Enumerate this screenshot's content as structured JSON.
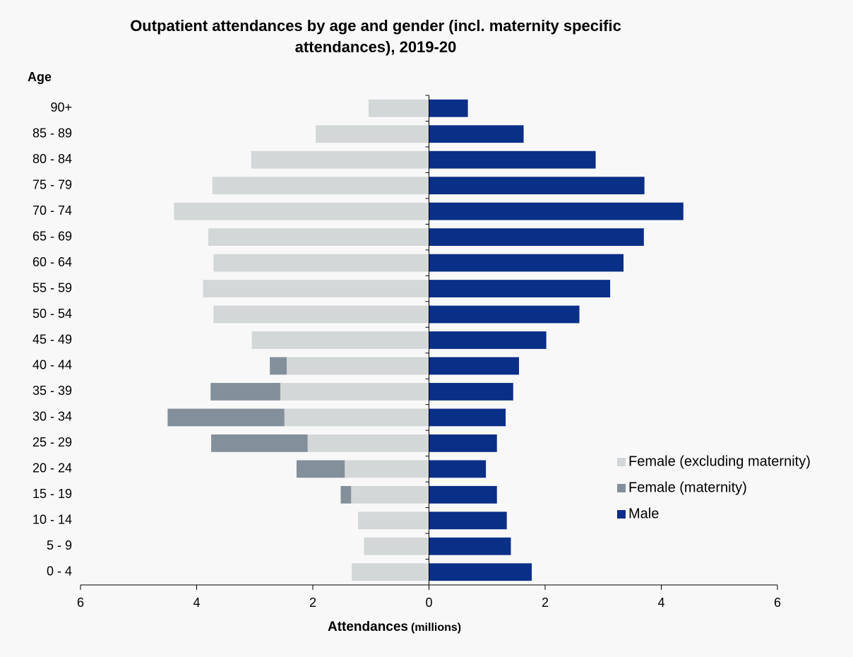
{
  "chart_data": {
    "type": "pyramid",
    "title": "Outpatient attendances by age and gender (incl. maternity specific",
    "title_line2": "attendances), 2019-20",
    "y_label": "Age",
    "x_label": "Attendances",
    "x_label_unit": "(millions)",
    "categories": [
      "90+",
      "85 - 89",
      "80 - 84",
      "75 - 79",
      "70 - 74",
      "65 - 69",
      "60 - 64",
      "55 - 59",
      "50 - 54",
      "45 - 49",
      "40 - 44",
      "35 - 39",
      "30 - 34",
      "25 - 29",
      "20 - 24",
      "15 - 19",
      "10 - 14",
      "5 - 9",
      "0 - 4"
    ],
    "series": [
      {
        "name": "Female (excluding maternity)",
        "color": "#d3d7d8",
        "values": [
          -1.04,
          -1.95,
          -3.06,
          -3.73,
          -4.39,
          -3.8,
          -3.71,
          -3.89,
          -3.71,
          -3.05,
          -2.45,
          -2.56,
          -2.49,
          -2.09,
          -1.45,
          -1.34,
          -1.22,
          -1.12,
          -1.33
        ]
      },
      {
        "name": "Female (maternity)",
        "color": "#838f9a",
        "values": [
          0,
          0,
          0,
          0,
          0,
          0,
          0,
          0,
          0,
          0,
          -0.29,
          -1.2,
          -2.01,
          -1.66,
          -0.83,
          -0.18,
          0,
          0,
          0
        ]
      },
      {
        "name": "Male",
        "color": "#0a2f87",
        "values": [
          0.67,
          1.63,
          2.87,
          3.71,
          4.38,
          3.7,
          3.35,
          3.12,
          2.59,
          2.02,
          1.55,
          1.45,
          1.32,
          1.17,
          0.98,
          1.17,
          1.34,
          1.41,
          1.77
        ]
      }
    ],
    "xlim": [
      -6,
      6
    ],
    "xticks": [
      {
        "value": -6,
        "label": "6"
      },
      {
        "value": -4,
        "label": "4"
      },
      {
        "value": -2,
        "label": "2"
      },
      0,
      2,
      4,
      6
    ],
    "legend": "right"
  }
}
